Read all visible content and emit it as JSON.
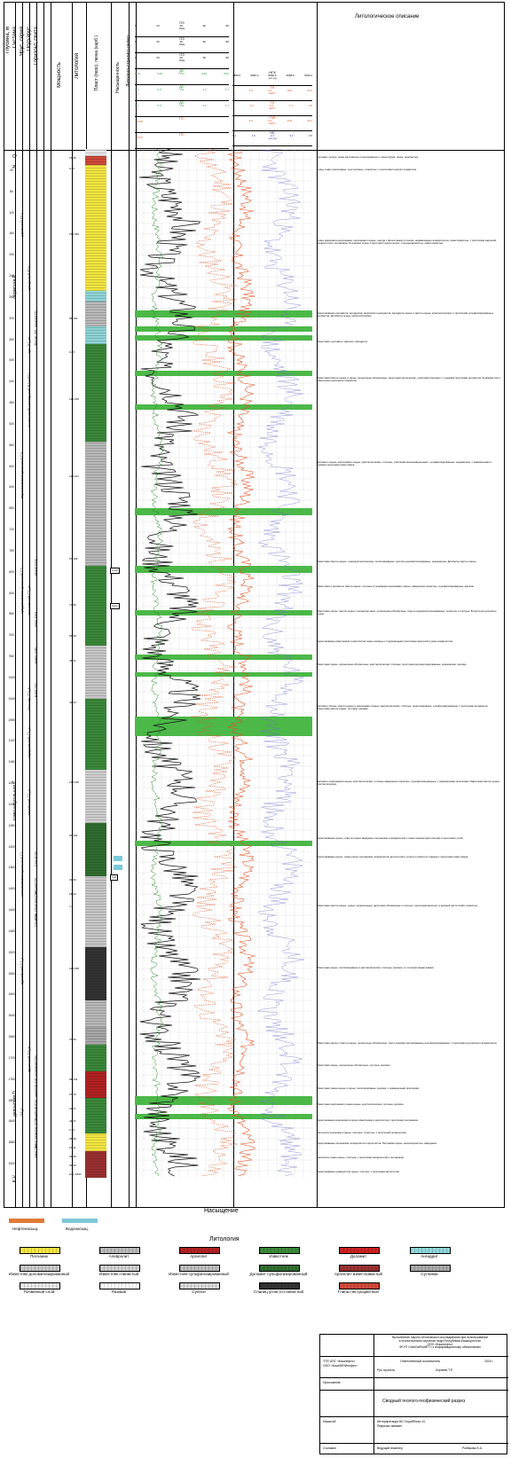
{
  "header": {
    "col_depth": "Глубина, м",
    "col_system": "Система",
    "col_stage": "Ярус, серия",
    "col_substage": "Подъярус",
    "col_horizon": "Горизонт, свита",
    "col_thickness": "Мощность",
    "col_lithology": "Литология",
    "col_reservoir": "Пласт (перс), пачка (карб.)",
    "col_saturation": "Насыщенность",
    "col_litho_strat": "Литолого-стратигр.репер",
    "col_description": "Литологическое описание",
    "curves_left": [
      {
        "name": "ПЗ",
        "unit": "Омм",
        "scale": [
          "0",
          "20",
          "40",
          "60",
          "80"
        ]
      },
      {
        "name": "ПЗ",
        "unit": "Омм",
        "scale": [
          "0",
          "20",
          "40",
          "60",
          "80"
        ]
      },
      {
        "name": "ПЗ",
        "unit": "Омм",
        "scale": [
          "0",
          "20",
          "40",
          "60",
          "80"
        ]
      },
      {
        "name": "ДС",
        "unit": "",
        "scale": [
          "0.13",
          "0.25",
          "0.37",
          "0.49",
          "0.61"
        ]
      },
      {
        "name": "ДС",
        "unit": "",
        "scale": [
          "0.1",
          "0.5",
          "0.9",
          "1.3",
          "1.7"
        ]
      },
      {
        "name": "ДС",
        "unit": "",
        "scale": [
          "0.1",
          "0.5",
          "0.9",
          "1.3",
          "1.7"
        ]
      },
      {
        "name": "ПС",
        "unit": "",
        "scale": [
          "-30.98",
          "",
          "",
          "",
          ""
        ]
      },
      {
        "name": "ПС",
        "unit": "",
        "scale": [
          "-25.63",
          "",
          "",
          "",
          ""
        ]
      }
    ],
    "curves_right": [
      {
        "name": "НГК",
        "unit": "усл.ед",
        "scale": [
          "4886.6",
          "5290.2",
          "5692.6",
          "6098.6",
          "7096.2"
        ]
      },
      {
        "name": "ГК",
        "unit": "мкР/ч",
        "scale": [
          "0",
          "4.6",
          "9.2",
          "13.8",
          "18.4"
        ]
      },
      {
        "name": "ГК",
        "unit": "мкР/ч",
        "scale": [
          "0",
          "3.4",
          "6.8",
          "7.2",
          "9.6"
        ]
      },
      {
        "name": "ГКВ",
        "unit": "мкР/ч",
        "scale": [
          "0",
          "4.6",
          "9.2",
          "13.8",
          "18.4"
        ]
      },
      {
        "name": "НК",
        "unit": "усл.ед",
        "scale": [
          "1.1",
          "1.6",
          "2.1",
          "3.2",
          "3.5"
        ]
      }
    ]
  },
  "depths": [
    "40",
    "80",
    "120",
    "160",
    "200",
    "240",
    "280",
    "320",
    "360",
    "400",
    "440",
    "480",
    "520",
    "560",
    "600",
    "640",
    "680",
    "720",
    "760",
    "800",
    "840",
    "880",
    "920",
    "960",
    "1000",
    "1040",
    "1080",
    "1120",
    "1160",
    "1200",
    "1240",
    "1280",
    "1320",
    "1360",
    "1400",
    "1440",
    "1480",
    "1520",
    "1560",
    "1600",
    "1640",
    "1680",
    "1720",
    "1760",
    "1800",
    "1840",
    "1880",
    "1920"
  ],
  "systems": [
    {
      "label": "Q"
    },
    {
      "label": "N"
    },
    {
      "label": "пермская Р"
    },
    {
      "label": "каменноугольная С"
    },
    {
      "label": "девонская D"
    },
    {
      "label": "K-V"
    }
  ],
  "stages": [
    {
      "label": "уфимский P1u"
    },
    {
      "label": "кунгурский P1k"
    },
    {
      "label": "арт. P1_ar"
    },
    {
      "label": "ассельский+сакмарский P1a+P1s"
    },
    {
      "label": "верхнекаменноугольный C3"
    },
    {
      "label": "среднекаменноугольный C2"
    },
    {
      "label": "нижнекаменноугольный C1"
    },
    {
      "label": "турнейский C1_t"
    },
    {
      "label": "франский D3_fr"
    },
    {
      "label": "D3_f"
    }
  ],
  "substages": [
    {
      "label": "московский C2_m"
    },
    {
      "label": "башкир. C2_b"
    },
    {
      "label": "серпуховский C1_s"
    },
    {
      "label": "визейский C1_v"
    }
  ],
  "horizons": [
    {
      "label": "иренский P1ir"
    },
    {
      "label": "филлип. P1fl"
    },
    {
      "label": "мячков. C2mc"
    },
    {
      "label": "подол. C2pd"
    },
    {
      "label": "каширс. C2ks"
    },
    {
      "label": "верей. C2vr"
    },
    {
      "label": "тульский C1tl"
    },
    {
      "label": "C1bb+C1rd"
    },
    {
      "label": "косьв. C1ksv"
    },
    {
      "label": "C1up+C1mn"
    },
    {
      "label": "C1ct+C1kz"
    },
    {
      "label": "саргаевский D3sr"
    },
    {
      "label": "кыновский D3kn"
    },
    {
      "label": "пашийский D3ps"
    },
    {
      "label": "мулин. D2ml"
    },
    {
      "label": "ардат. D2ar"
    },
    {
      "label": "вороб. D2vr"
    }
  ],
  "thickness": [
    {
      "label": "15-45"
    },
    {
      "label": "0-70"
    },
    {
      "label": "158-300"
    },
    {
      "label": "95-120"
    },
    {
      "label": "9-25"
    },
    {
      "label": "145-165"
    },
    {
      "label": "144-167"
    },
    {
      "label": "97-108"
    },
    {
      "label": "71-82"
    },
    {
      "label": "56-58"
    },
    {
      "label": "45-47"
    },
    {
      "label": "42-53"
    },
    {
      "label": "138-160"
    },
    {
      "label": "20-102"
    },
    {
      "label": "31-60"
    },
    {
      "label": "18-64"
    },
    {
      "label": "7-8"
    },
    {
      "label": "138-238"
    },
    {
      "label": "37-60"
    },
    {
      "label": "28-144"
    },
    {
      "label": "67-76"
    },
    {
      "label": "21-27"
    },
    {
      "label": "42-47"
    },
    {
      "label": "2-10"
    },
    {
      "label": "28-35"
    },
    {
      "label": "10-11"
    },
    {
      "label": "34-39"
    },
    {
      "label": "30-40"
    },
    {
      "label": "вскр 1834"
    }
  ],
  "reservoir_tags": [
    "Сзкр",
    "Сзкр",
    "Сзт",
    "Сзр",
    "Сзб"
  ],
  "descriptions": [
    {
      "text": "Суглинки, супеси, пески желтоватые и коричневатые и глины бурые, пески, пепелистые."
    },
    {
      "text": "Глины темно-коричневые, серо-зелёные, глинистые, с прослоями песков и алевритов."
    },
    {
      "text": "Глины красновато-коричневые, коричневато-серые, иногда с фиолетовым оттенком, неравномерно алевритистые, известковистые, с прослоями мергелей, алевролитов и песчаников. Песчаники серые и желтовато-серые мелко- и среднезернистые, известковистые."
    },
    {
      "text": "Переслаивание доломитов, ангидритов, мергелей и ангидритов. Ангидриты серые и светло-серые, кристаллические, с прослоями сульфатизированных доломитов. Доломиты серые, кристаллические."
    },
    {
      "text": "Известняки, доломиты, мергели, ангидриты."
    },
    {
      "text": "Известняки светло-серые и серые, органогенно-обломочные, скрытокристаллические, участками перекрист. с редкими прослоями доломитов. В нижней части известняки и доломиты глинистые."
    },
    {
      "text": "Доломиты серые, коричневато-серые, кристаллические, плотные, участками мелкокавернозные, сульфатизированные, окремнелые, с окаменелыми и тонкими прослоями известняков."
    },
    {
      "text": "Известняки светло-серые, тонкокристаллические, пелитоморфные, прослои доломитизированных, окремнелые; Доломиты светло-серые."
    },
    {
      "text": "Известняки и доломиты светло-серые, плотные, в основании коричневато-серые, кавернозно-пористые, сульфатизированные, крепкие."
    },
    {
      "text": "Известняки серые, светло-серые, полидетритовые, органогенно-обломочные, скрыто-перекристаллизованные, пористые и плотные. В прослоях доломиты серые."
    },
    {
      "text": "Переслаивание известняков и аргиллитов темно-зелёных с подчинёнными прослоями мергелей и реже алевролитов."
    },
    {
      "text": "Известняки серые, органогенно-обломочные, кристаллические, плотные, прослоями доломитизированные, окремнелые, крепкие."
    },
    {
      "text": "Доломиты белые, светло-серые и коричневато-серые, кристаллические, плотные, пелитоморфные, сульфатизированные, с прослоями ангидритов. Известняки светло-серые, плотные, крепкие."
    },
    {
      "text": "Доломиты коричневато-серые, кристаллические, плотные кавернозно-пористые, сульфатизированные, с окремнелыми прослоями. Известняки светло-серые, кристаллические."
    },
    {
      "text": "Переслаивание серых и светло-серых кварцевых песчаников и алевролитов с темно-серыми аргиллитами и прослоями углей."
    },
    {
      "text": "Переслаивание серых, темно-серых песчаников, алевролитов, аргиллитов и углисто-глинистых сланцев с прослоями известняков."
    },
    {
      "text": "Известняки светло-серые, серые, органогенные, детритово-обломочные и плотные, прослоями мергели, в верхней части слабо глинистые."
    },
    {
      "text": "Известняки серые, пелитоморфные и кристаллические, плотные, крепкие, со стилолитовыми швами."
    },
    {
      "text": "Известняки серые и светло-серые, органогенно-обломочные, часто перекристаллизованные доломитизированные, с прослоями доломитов и алевролитов."
    },
    {
      "text": "Известняки серые, органогенно-обломочные, плотные, крепкие."
    },
    {
      "text": "Известняки темно-серые и серые, пелитоморфные, крепкие, с окаменелыми прослоями."
    },
    {
      "text": "Известняки коричневато-темно-серые, кристаллические, плотные, крепкие."
    },
    {
      "text": "Переслаивание коричневато-серых известняков и аргиллитов с прослоями песчаников."
    },
    {
      "text": "Аргиллиты зеленовато-серые, плотные, слоистые, с прослоями алевролитов."
    },
    {
      "text": "Переслаивание песчаников, алевролитов и аргиллитов. Песчаники серые, мелкозернистые, кварцевые."
    },
    {
      "text": "Аргиллиты темно-серые, плотные, с прослоями алевролитов и песчаников."
    },
    {
      "text": "Переслаивание алевролитов серых, плотных, с прослоями аргиллитов."
    }
  ],
  "saturation": {
    "title": "Насыщение",
    "items": [
      {
        "label": "Нефтенасыщ.",
        "color": "#e07a38"
      },
      {
        "label": "Водонасыщ.",
        "color": "#7cc8d8"
      }
    ]
  },
  "lithology_legend": {
    "title": "Литология",
    "items": [
      {
        "label": "Песчаник",
        "color": "#f5e642"
      },
      {
        "label": "Алевролит",
        "color": "#b9b9b9"
      },
      {
        "label": "Аргиллит",
        "color": "#b22222"
      },
      {
        "label": "Известняк",
        "color": "#3a8a3a"
      },
      {
        "label": "Доломит",
        "color": "#cc2222"
      },
      {
        "label": "Ангидрит",
        "color": "#8fd6d8"
      },
      {
        "label": "Известняк доломитизированный",
        "color": "#c8c8c8"
      },
      {
        "label": "Известняк глинистый",
        "color": "#cfcfcf"
      },
      {
        "label": "Известняк сульфатизированный",
        "color": "#bdbdbd"
      },
      {
        "label": "Доломит сульфатизированный",
        "color": "#2f6e2f"
      },
      {
        "label": "Аргиллит известковистый",
        "color": "#9b3030"
      },
      {
        "label": "Суглинки",
        "color": "#a8a8a8"
      },
      {
        "label": "Почвенный слой",
        "color": "#e8e8e8"
      },
      {
        "label": "Размыв",
        "color": "#ffffff"
      },
      {
        "label": "Супеси",
        "color": "#d8d8d8"
      },
      {
        "label": "Сланец углисто-глинистый",
        "color": "#333333"
      },
      {
        "label": "Глины пестроцветные",
        "color": "#d04a3a"
      }
    ]
  },
  "stamp": {
    "org1": "ТПП АПС «Башнефть»",
    "org2": "ООО «БашНИПИнефть»",
    "topline1": "Выполнение научно-технического исследования при использовании",
    "topline2": "в геологическом изучении недр Республики Башкортостан",
    "topline3": "ООО «Башнефть»",
    "topline4": "ФГУП «ЗапСибНИИГГ» к информационному обеспечению",
    "role1": "Ответственный исполнитель",
    "role2": "Рук. проекта",
    "name2": "Корнеев Т.Р.",
    "year": "2015 г.",
    "appendix": "Приложение",
    "doc_title": "Сводный геолого-геофизический разрез",
    "well_label": "Масштаб",
    "well_line1": "Интерпретация ВО СерийПлан-14",
    "well_line2": "Разрезка скважин",
    "made_by": "Составил",
    "lead_engineer": "Ведущий инженер",
    "lead_name": "Рыбакова Е.А."
  }
}
